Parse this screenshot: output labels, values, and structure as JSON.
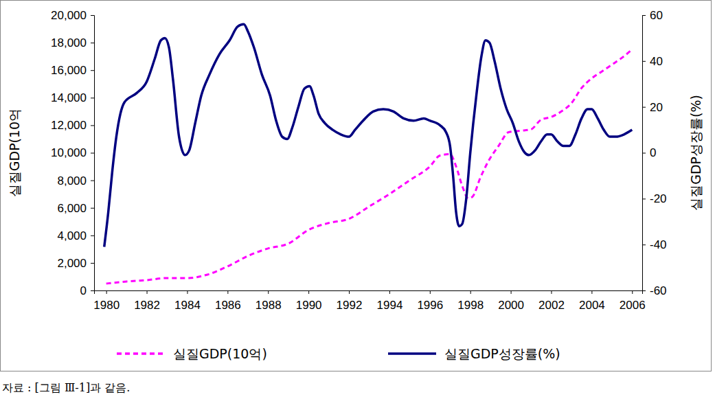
{
  "chart_data": {
    "type": "line",
    "y_label": "실질GDP(10억",
    "y2_label": "실질GDP성장률(%)",
    "source": "자료 : [그림 Ⅲ-1]과 같음.",
    "legend": "bottom",
    "grid": false,
    "xlim": [
      1979.4,
      2006.5
    ],
    "xticks": [
      1980,
      1982,
      1984,
      1986,
      1988,
      1990,
      1992,
      1994,
      1996,
      1998,
      2000,
      2002,
      2004,
      2006
    ],
    "ylim": [
      0,
      20000
    ],
    "yticks": [
      0,
      {
        "value": 2000,
        "label": "2,000"
      },
      {
        "value": 4000,
        "label": "4,000"
      },
      {
        "value": 6000,
        "label": "6,000"
      },
      {
        "value": 8000,
        "label": "8,000"
      },
      {
        "value": 10000,
        "label": "10,000"
      },
      {
        "value": 12000,
        "label": "12,000"
      },
      {
        "value": 14000,
        "label": "14,000"
      },
      {
        "value": 16000,
        "label": "16,000"
      },
      {
        "value": 18000,
        "label": "18,000"
      },
      {
        "value": 20000,
        "label": "20,000"
      }
    ],
    "y2lim": [
      -60,
      60
    ],
    "y2ticks": [
      -60,
      -40,
      -20,
      0,
      20,
      40,
      60
    ],
    "series": [
      {
        "name": "실질GDP(10억)",
        "color": "#ff00ff",
        "line_style": "dashed",
        "axis": "y",
        "x": [
          1980,
          1981,
          1982,
          1983,
          1984,
          1985,
          1986,
          1987,
          1988,
          1989,
          1990,
          1991,
          1992,
          1993,
          1994,
          1995,
          1996,
          1996.5,
          1997,
          1997.3,
          1997.6,
          1997.9,
          1998.1,
          1998.5,
          1998.9,
          1999.4,
          1999.9,
          2000.5,
          2001,
          2001.5,
          2002,
          2002.5,
          2003,
          2003.5,
          2004,
          2004.5,
          2005,
          2005.5,
          2006
        ],
        "values": [
          500,
          650,
          750,
          900,
          900,
          1150,
          1750,
          2500,
          3050,
          3400,
          4400,
          4900,
          5200,
          6100,
          7000,
          8000,
          9000,
          9800,
          9900,
          9000,
          7600,
          6700,
          6800,
          8200,
          9400,
          10500,
          11500,
          11600,
          11700,
          12400,
          12600,
          13000,
          13600,
          14700,
          15400,
          15900,
          16400,
          16900,
          17500
        ]
      },
      {
        "name": "실질GDP성장률(%)",
        "color": "#000080",
        "line_style": "solid",
        "axis": "y2",
        "x": [
          1979.9,
          1980.1,
          1980.3,
          1980.5,
          1980.7,
          1980.9,
          1981.5,
          1982,
          1982.4,
          1982.7,
          1982.9,
          1983.1,
          1983.3,
          1983.6,
          1983.9,
          1984.1,
          1984.4,
          1984.7,
          1985.1,
          1985.6,
          1986.1,
          1986.5,
          1986.8,
          1987,
          1987.3,
          1987.7,
          1988.1,
          1988.4,
          1988.7,
          1988.95,
          1989.2,
          1989.5,
          1989.8,
          1990.05,
          1990.25,
          1990.5,
          1990.8,
          1991.2,
          1991.6,
          1992,
          1992.3,
          1992.7,
          1993.2,
          1993.7,
          1994.2,
          1994.7,
          1995.2,
          1995.7,
          1996,
          1996.5,
          1996.8,
          1997,
          1997.15,
          1997.3,
          1997.45,
          1997.6,
          1997.8,
          1998,
          1998.3,
          1998.55,
          1998.75,
          1998.95,
          1999.2,
          1999.5,
          1999.8,
          2000.1,
          2000.4,
          2000.7,
          2000.9,
          2001.2,
          2001.5,
          2001.8,
          2002,
          2002.3,
          2002.6,
          2002.9,
          2003.2,
          2003.5,
          2003.8,
          2004,
          2004.3,
          2004.6,
          2004.9,
          2005.2,
          2005.6,
          2006
        ],
        "values": [
          -41,
          -26,
          -8,
          7,
          17,
          22,
          26,
          31,
          41,
          49,
          50,
          46,
          32,
          7,
          -1,
          1,
          13,
          25,
          34,
          43,
          49,
          55,
          56,
          53,
          46,
          34,
          25,
          14,
          7,
          6,
          11,
          20,
          28,
          29,
          25,
          17,
          13,
          10,
          8,
          7,
          10,
          14,
          18,
          19,
          18,
          15,
          14,
          15,
          14,
          12,
          9,
          3,
          -10,
          -26,
          -32,
          -31,
          -20,
          0,
          25,
          42,
          49,
          48,
          40,
          28,
          19,
          13,
          5,
          0,
          -1,
          1,
          5,
          8,
          8,
          5,
          3,
          3,
          8,
          15,
          19,
          19,
          15,
          10,
          7,
          7,
          8,
          10
        ]
      }
    ]
  }
}
